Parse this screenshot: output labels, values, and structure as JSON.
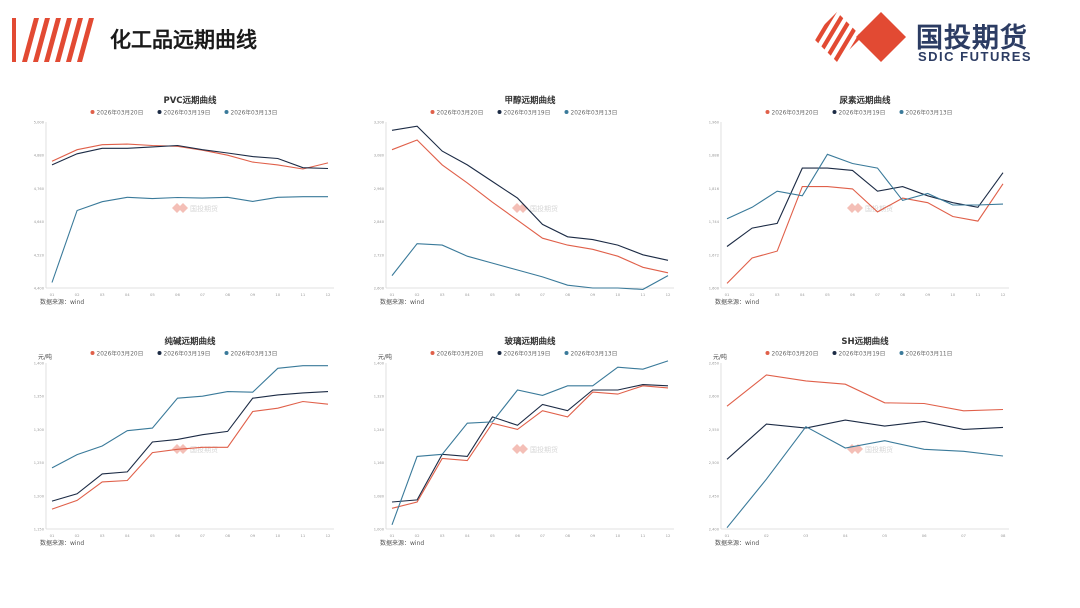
{
  "header": {
    "title": "化工品远期曲线",
    "logo": {
      "cn": "国投期货",
      "en": "SDIC FUTURES"
    }
  },
  "colors": {
    "s1": "#e0604a",
    "s2": "#1c2b45",
    "s3": "#3a7a9a",
    "brand": "#e24a33",
    "brand_dark": "#2c3c63"
  },
  "icons": {
    "header_stripes": "red-diagonal-stripes-icon",
    "logo_mark": "red-diamond-logo-icon"
  },
  "chart_data": [
    {
      "type": "line",
      "title": "PVC远期曲线",
      "ylabel": "",
      "source": "数据来源：wind",
      "watermark": "国投期货",
      "ylim": [
        4400,
        5000
      ],
      "legend": "top-center",
      "grid": false,
      "categories": [
        "01",
        "02",
        "03",
        "04",
        "05",
        "06",
        "07",
        "08",
        "09",
        "10",
        "11",
        "12"
      ],
      "series": [
        {
          "name": "2026年03月20日",
          "values": [
            4858,
            4900,
            4918,
            4920,
            4915,
            4912,
            4898,
            4880,
            4855,
            4845,
            4830,
            4852
          ]
        },
        {
          "name": "2026年03月19日",
          "values": [
            4845,
            4885,
            4905,
            4905,
            4910,
            4915,
            4900,
            4888,
            4875,
            4868,
            4835,
            4832
          ]
        },
        {
          "name": "2026年03月13日",
          "values": [
            4420,
            4680,
            4712,
            4728,
            4723,
            4727,
            4725,
            4728,
            4713,
            4728,
            4730,
            4730
          ]
        }
      ]
    },
    {
      "type": "line",
      "title": "甲醇远期曲线",
      "ylabel": "",
      "source": "数据来源：wind",
      "watermark": "国投期货",
      "ylim": [
        2600,
        3200
      ],
      "legend": "top-center",
      "grid": false,
      "categories": [
        "01",
        "02",
        "03",
        "04",
        "05",
        "06",
        "07",
        "08",
        "09",
        "10",
        "11",
        "12"
      ],
      "series": [
        {
          "name": "2026年03月20日",
          "values": [
            3100,
            3135,
            3045,
            2980,
            2910,
            2845,
            2780,
            2755,
            2740,
            2715,
            2675,
            2655
          ]
        },
        {
          "name": "2026年03月19日",
          "values": [
            3170,
            3185,
            3095,
            3045,
            2985,
            2925,
            2830,
            2785,
            2775,
            2755,
            2720,
            2700
          ]
        },
        {
          "name": "2026年03月13日",
          "values": [
            2645,
            2760,
            2755,
            2715,
            2690,
            2665,
            2640,
            2610,
            2600,
            2600,
            2595,
            2645
          ]
        }
      ]
    },
    {
      "type": "line",
      "title": "尿素远期曲线",
      "ylabel": "",
      "source": "数据来源：wind",
      "watermark": "国投期货",
      "ylim": [
        1600,
        1960
      ],
      "legend": "top-center",
      "grid": false,
      "categories": [
        "01",
        "02",
        "03",
        "04",
        "05",
        "06",
        "07",
        "08",
        "09",
        "10",
        "11",
        "12"
      ],
      "series": [
        {
          "name": "2026年03月20日",
          "values": [
            1610,
            1665,
            1680,
            1820,
            1820,
            1815,
            1765,
            1795,
            1785,
            1755,
            1745,
            1826
          ]
        },
        {
          "name": "2026年03月19日",
          "values": [
            1690,
            1730,
            1740,
            1860,
            1860,
            1855,
            1810,
            1820,
            1800,
            1785,
            1775,
            1850
          ]
        },
        {
          "name": "2026年03月13日",
          "values": [
            1750,
            1775,
            1810,
            1800,
            1890,
            1870,
            1860,
            1790,
            1805,
            1780,
            1780,
            1782
          ]
        }
      ]
    },
    {
      "type": "line",
      "title": "纯碱远期曲线",
      "ylabel": "元/吨",
      "source": "数据来源：wind",
      "watermark": "国投期货",
      "ylim": [
        1150,
        1400
      ],
      "legend": "top-center",
      "grid": false,
      "categories": [
        "01",
        "02",
        "03",
        "04",
        "05",
        "06",
        "07",
        "08",
        "09",
        "10",
        "11",
        "12"
      ],
      "series": [
        {
          "name": "2026年03月20日",
          "values": [
            1180,
            1193,
            1221,
            1223,
            1265,
            1270,
            1273,
            1273,
            1327,
            1332,
            1342,
            1338
          ]
        },
        {
          "name": "2026年03月19日",
          "values": [
            1192,
            1203,
            1233,
            1236,
            1281,
            1285,
            1292,
            1297,
            1347,
            1352,
            1355,
            1357
          ]
        },
        {
          "name": "2026年03月13日",
          "values": [
            1242,
            1262,
            1275,
            1298,
            1302,
            1347,
            1350,
            1357,
            1356,
            1392,
            1396,
            1396
          ]
        }
      ]
    },
    {
      "type": "line",
      "title": "玻璃远期曲线",
      "ylabel": "元/吨",
      "source": "数据来源：wind",
      "watermark": "国投期货",
      "ylim": [
        1000,
        1400
      ],
      "legend": "top-center",
      "grid": false,
      "categories": [
        "01",
        "02",
        "03",
        "04",
        "05",
        "06",
        "07",
        "08",
        "09",
        "10",
        "11",
        "12"
      ],
      "series": [
        {
          "name": "2026年03月20日",
          "values": [
            1050,
            1065,
            1170,
            1165,
            1255,
            1240,
            1285,
            1270,
            1330,
            1325,
            1345,
            1340
          ]
        },
        {
          "name": "2026年03月19日",
          "values": [
            1065,
            1070,
            1180,
            1175,
            1270,
            1250,
            1300,
            1285,
            1335,
            1335,
            1348,
            1345
          ]
        },
        {
          "name": "2026年03月13日",
          "values": [
            1010,
            1175,
            1180,
            1255,
            1258,
            1335,
            1322,
            1345,
            1345,
            1390,
            1385,
            1405
          ]
        }
      ]
    },
    {
      "type": "line",
      "title": "SH远期曲线",
      "ylabel": "元/吨",
      "source": "数据来源：wind",
      "watermark": "国投期货",
      "ylim": [
        2400,
        2650
      ],
      "legend": "top-center",
      "grid": false,
      "categories": [
        "01",
        "02",
        "03",
        "04",
        "05",
        "06",
        "07",
        "08"
      ],
      "series": [
        {
          "name": "2026年03月20日",
          "values": [
            2585,
            2632,
            2623,
            2618,
            2590,
            2589,
            2578,
            2580
          ]
        },
        {
          "name": "2026年03月19日",
          "values": [
            2505,
            2558,
            2552,
            2564,
            2555,
            2562,
            2550,
            2553
          ]
        },
        {
          "name": "2026年03月11日",
          "values": [
            2402,
            2475,
            2554,
            2522,
            2533,
            2520,
            2517,
            2510
          ]
        }
      ]
    }
  ]
}
